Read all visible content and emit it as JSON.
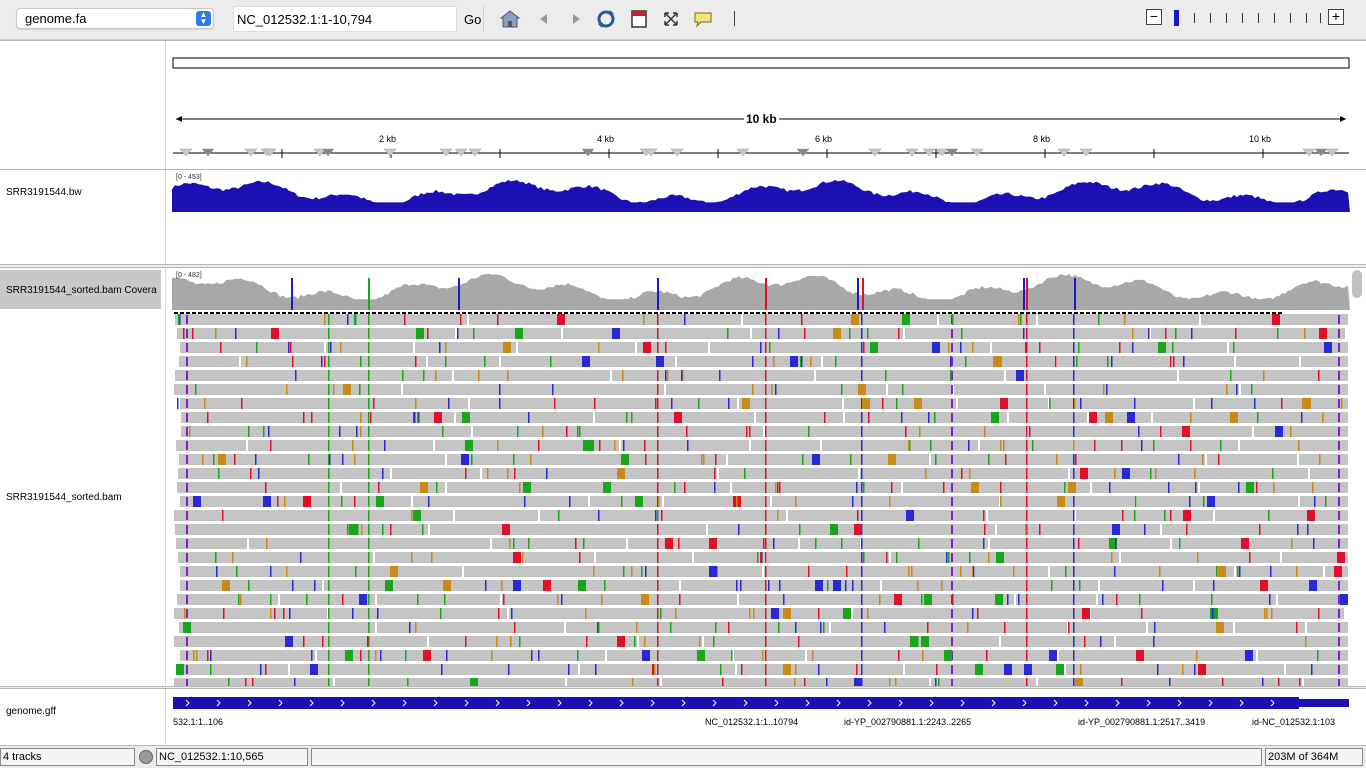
{
  "toolbar": {
    "genome": "genome.fa",
    "locus": "NC_012532.1:1-10,794",
    "go_label": "Go",
    "zoom_levels": 11,
    "zoom_current": 0
  },
  "ruler": {
    "span_label": "10 kb",
    "ticks": [
      "2 kb",
      "4 kb",
      "6 kb",
      "8 kb",
      "10 kb"
    ]
  },
  "tracks": {
    "bigwig": {
      "name": "SRR3191544.bw",
      "range": "[0 - 453]",
      "color": "#1c10b4"
    },
    "coverage": {
      "name": "SRR3191544_sorted.bam Covera",
      "range": "[0 - 482]",
      "color": "#a8a8a8"
    },
    "alignment": {
      "name": "SRR3191544_sorted.bam"
    },
    "gff": {
      "name": "genome.gff",
      "color": "#1c10b4",
      "features": [
        "532.1:1..106",
        "NC_012532.1:1..10794",
        "id-YP_002790881.1:2243..2265",
        "id-YP_002790881.1:2517..3419",
        "id-NC_012532.1:103"
      ]
    }
  },
  "status": {
    "tracks": "4 tracks",
    "position": "NC_012532.1:10,565",
    "memory": "203M of 364M"
  },
  "colors": {
    "mismatch_a": "#1aa51a",
    "mismatch_c": "#2a2ad4",
    "mismatch_g": "#c98a1a",
    "mismatch_t": "#e0102a",
    "insertion": "#8b1ad4",
    "read": "#c4c4c4"
  }
}
